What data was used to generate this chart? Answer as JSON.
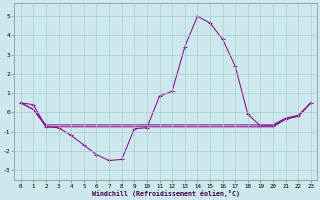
{
  "xlabel": "Windchill (Refroidissement éolien,°C)",
  "background_color": "#cce8ec",
  "line_color": "#880088",
  "grid_color": "#aacccc",
  "xlim": [
    -0.5,
    23.5
  ],
  "ylim": [
    -3.5,
    5.7
  ],
  "yticks": [
    -3,
    -2,
    -1,
    0,
    1,
    2,
    3,
    4,
    5
  ],
  "xticks": [
    0,
    1,
    2,
    3,
    4,
    5,
    6,
    7,
    8,
    9,
    10,
    11,
    12,
    13,
    14,
    15,
    16,
    17,
    18,
    19,
    20,
    21,
    22,
    23
  ],
  "curve1_x": [
    0,
    1,
    2,
    3,
    4,
    5,
    6,
    7,
    8,
    9,
    10,
    11,
    12,
    13,
    14,
    15,
    16,
    17,
    18,
    19,
    20,
    21,
    22,
    23
  ],
  "curve1_y": [
    0.5,
    0.4,
    -0.75,
    -0.8,
    -1.2,
    -1.7,
    -2.2,
    -2.5,
    -2.45,
    -0.85,
    -0.8,
    0.85,
    1.1,
    3.4,
    5.0,
    4.65,
    3.8,
    2.4,
    -0.1,
    -0.7,
    -0.7,
    -0.35,
    -0.2,
    0.5
  ],
  "curve2_x": [
    0,
    1,
    2,
    23
  ],
  "curve2_y": [
    0.5,
    0.15,
    -0.75,
    0.5
  ],
  "curve3_x": [
    0,
    1,
    2,
    3,
    4,
    5,
    6,
    7,
    8,
    9,
    10,
    11,
    12,
    13,
    14,
    15,
    16,
    17,
    18,
    19,
    20,
    21,
    22,
    23
  ],
  "curve3_y": [
    0.5,
    0.15,
    -0.75,
    -0.75,
    -0.75,
    -0.75,
    -0.75,
    -0.75,
    -0.75,
    -0.75,
    -0.75,
    -0.75,
    -0.75,
    -0.75,
    -0.75,
    -0.75,
    -0.75,
    -0.75,
    -0.75,
    -0.75,
    -0.75,
    -0.35,
    -0.2,
    0.5
  ],
  "curve4_x": [
    0,
    1,
    2,
    3,
    4,
    5,
    6,
    7,
    8,
    9,
    10,
    11,
    12,
    13,
    14,
    15,
    16,
    17,
    18,
    19,
    20,
    21,
    22,
    23
  ],
  "curve4_y": [
    0.5,
    0.15,
    -0.65,
    -0.65,
    -0.65,
    -0.65,
    -0.65,
    -0.65,
    -0.65,
    -0.65,
    -0.65,
    -0.65,
    -0.65,
    -0.65,
    -0.65,
    -0.65,
    -0.65,
    -0.65,
    -0.65,
    -0.65,
    -0.65,
    -0.3,
    -0.15,
    0.5
  ]
}
